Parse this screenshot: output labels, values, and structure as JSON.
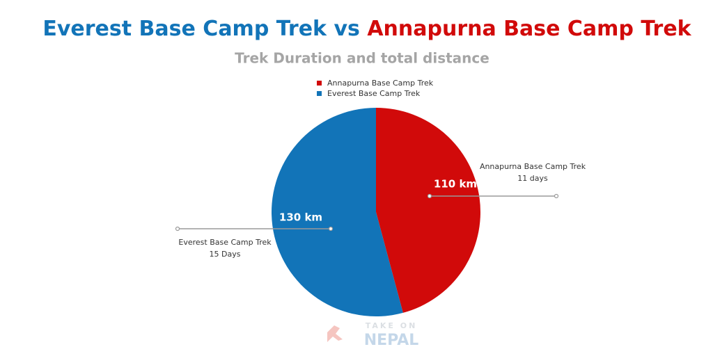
{
  "chart_data": {
    "type": "pie",
    "title": [
      "Everest Base Camp Trek vs",
      "Annapurna Base Camp Trek"
    ],
    "subtitle": "Trek Duration and total distance",
    "categories": [
      "Annapurna Base Camp Trek",
      "Everest Base Camp Trek"
    ],
    "values": [
      110,
      130
    ],
    "value_labels": [
      "110 km",
      "130 km"
    ],
    "colors": [
      "#d10a0a",
      "#1274b8"
    ],
    "legend": "top",
    "annotations": [
      {
        "label": "Annapurna Base Camp Trek",
        "detail": "11 days"
      },
      {
        "label": "Everest Base Camp Trek",
        "detail": "15 Days"
      }
    ],
    "watermark": [
      "TAKE ON",
      "NEPAL"
    ]
  }
}
